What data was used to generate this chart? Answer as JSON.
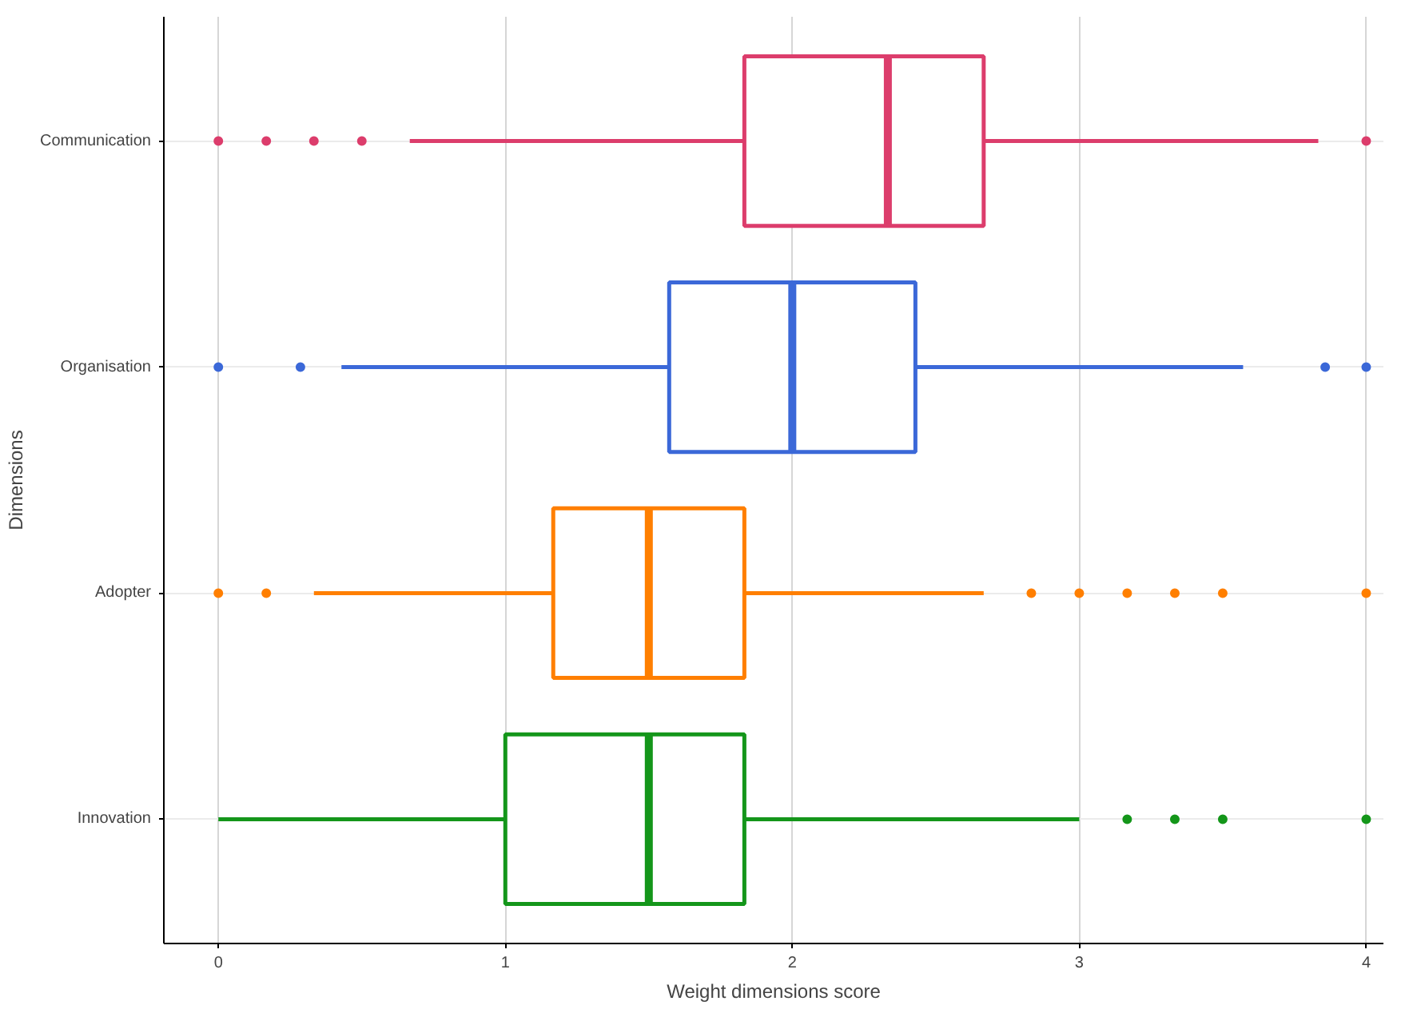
{
  "chart_data": {
    "type": "box",
    "orientation": "horizontal",
    "xlabel": "Weight dimensions score",
    "ylabel": "Dimensions",
    "categories": [
      "Communication",
      "Organisation",
      "Adopter",
      "Innovation"
    ],
    "colors": [
      "#dc3d6c",
      "#3b68d8",
      "#ff7f00",
      "#14961a"
    ],
    "boxes": [
      {
        "low": 0.667,
        "q1": 1.833,
        "median": 2.333,
        "q3": 2.667,
        "high": 3.833,
        "outliers": [
          0,
          0.167,
          0.333,
          0.5,
          4
        ]
      },
      {
        "low": 0.429,
        "q1": 1.571,
        "median": 2.0,
        "q3": 2.429,
        "high": 3.571,
        "outliers": [
          0,
          0.286,
          3.857,
          4
        ]
      },
      {
        "low": 0.333,
        "q1": 1.167,
        "median": 1.5,
        "q3": 1.833,
        "high": 2.667,
        "outliers": [
          0,
          0.167,
          2.833,
          3,
          3.167,
          3.333,
          3.5,
          4
        ]
      },
      {
        "low": 0,
        "q1": 1.0,
        "median": 1.5,
        "q3": 1.833,
        "high": 3.0,
        "outliers": [
          3.167,
          3.333,
          3.5,
          4
        ]
      }
    ],
    "xlim": [
      -0.19,
      4.06
    ],
    "xticks": [
      0,
      1,
      2,
      3,
      4
    ],
    "grid": true
  }
}
